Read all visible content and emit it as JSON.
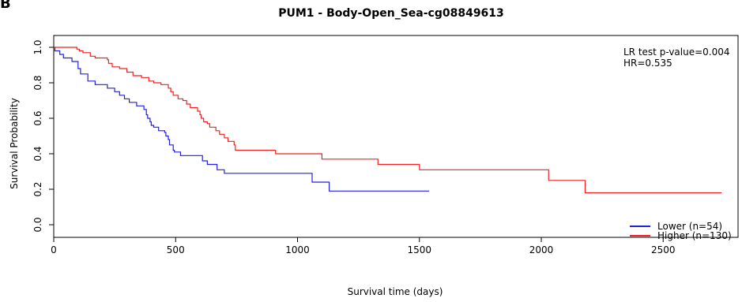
{
  "panel_letter": "B",
  "chart_data": {
    "type": "line",
    "title": "PUM1 - Body-Open_Sea-cg08849613",
    "xlabel": "Survival time (days)",
    "ylabel": "Survival Probability",
    "xlim": [
      0,
      2800
    ],
    "ylim": [
      0,
      1.0
    ],
    "x_ticks": [
      0,
      500,
      1000,
      1500,
      2000,
      2500
    ],
    "y_ticks": [
      0.0,
      0.2,
      0.4,
      0.6,
      0.8,
      1.0
    ],
    "x_tick_labels": [
      "0",
      "500",
      "1000",
      "1500",
      "2000",
      "2500"
    ],
    "y_tick_labels": [
      "0.0",
      "0.2",
      "0.4",
      "0.6",
      "0.8",
      "1.0"
    ],
    "grid": false,
    "legend_position": "bottom-right",
    "annotations": [
      "LR test p-value=0.004",
      "HR=0.535"
    ],
    "series": [
      {
        "name": "Lower (n=54)",
        "color": "#2222dd",
        "step": true,
        "points": [
          [
            0,
            1.0
          ],
          [
            5,
            0.98
          ],
          [
            25,
            0.96
          ],
          [
            40,
            0.94
          ],
          [
            75,
            0.92
          ],
          [
            100,
            0.88
          ],
          [
            110,
            0.85
          ],
          [
            140,
            0.81
          ],
          [
            170,
            0.79
          ],
          [
            220,
            0.77
          ],
          [
            250,
            0.75
          ],
          [
            270,
            0.73
          ],
          [
            290,
            0.71
          ],
          [
            310,
            0.69
          ],
          [
            340,
            0.67
          ],
          [
            370,
            0.65
          ],
          [
            380,
            0.62
          ],
          [
            385,
            0.6
          ],
          [
            395,
            0.58
          ],
          [
            400,
            0.56
          ],
          [
            410,
            0.55
          ],
          [
            430,
            0.53
          ],
          [
            455,
            0.52
          ],
          [
            460,
            0.5
          ],
          [
            470,
            0.48
          ],
          [
            475,
            0.45
          ],
          [
            490,
            0.42
          ],
          [
            495,
            0.41
          ],
          [
            520,
            0.39
          ],
          [
            610,
            0.36
          ],
          [
            630,
            0.34
          ],
          [
            670,
            0.31
          ],
          [
            700,
            0.29
          ],
          [
            1060,
            0.24
          ],
          [
            1130,
            0.19
          ],
          [
            1540,
            0.19
          ]
        ]
      },
      {
        "name": "Higher (n=130)",
        "color": "#ee2222",
        "step": true,
        "points": [
          [
            0,
            1.0
          ],
          [
            95,
            0.99
          ],
          [
            105,
            0.98
          ],
          [
            120,
            0.97
          ],
          [
            150,
            0.95
          ],
          [
            170,
            0.94
          ],
          [
            220,
            0.93
          ],
          [
            225,
            0.91
          ],
          [
            240,
            0.89
          ],
          [
            270,
            0.88
          ],
          [
            300,
            0.86
          ],
          [
            325,
            0.84
          ],
          [
            360,
            0.83
          ],
          [
            390,
            0.81
          ],
          [
            410,
            0.8
          ],
          [
            440,
            0.79
          ],
          [
            470,
            0.77
          ],
          [
            480,
            0.75
          ],
          [
            490,
            0.73
          ],
          [
            510,
            0.71
          ],
          [
            530,
            0.7
          ],
          [
            545,
            0.68
          ],
          [
            560,
            0.66
          ],
          [
            590,
            0.64
          ],
          [
            600,
            0.62
          ],
          [
            605,
            0.6
          ],
          [
            615,
            0.58
          ],
          [
            630,
            0.57
          ],
          [
            640,
            0.55
          ],
          [
            665,
            0.53
          ],
          [
            680,
            0.51
          ],
          [
            700,
            0.49
          ],
          [
            715,
            0.47
          ],
          [
            740,
            0.45
          ],
          [
            745,
            0.42
          ],
          [
            910,
            0.4
          ],
          [
            1100,
            0.37
          ],
          [
            1330,
            0.34
          ],
          [
            1500,
            0.31
          ],
          [
            2030,
            0.25
          ],
          [
            2180,
            0.18
          ],
          [
            2740,
            0.18
          ]
        ]
      }
    ]
  }
}
